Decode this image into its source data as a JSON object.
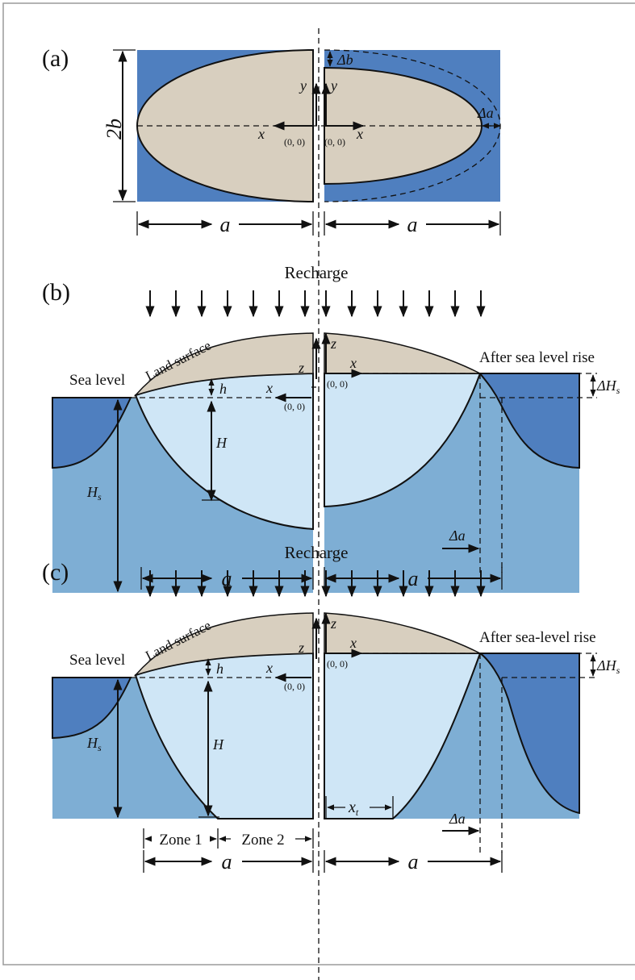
{
  "panel_a": {
    "label": "(a)",
    "height_label": "2b",
    "delta_b": "Δb",
    "y_left": "y",
    "y_right": "y",
    "x_left": "x",
    "x_right": "x",
    "origin_left": "(0, 0)",
    "origin_right": "(0, 0)",
    "delta_a": "Δa",
    "a_left": "a",
    "a_right": "a"
  },
  "panel_b": {
    "label": "(b)",
    "recharge": "Recharge",
    "land_surface": "Land surface",
    "z_left": "z",
    "z_right": "z",
    "x_left": "x",
    "x_right": "x",
    "origin_left": "(0, 0)",
    "origin_right": "(0, 0)",
    "after_rise": "After sea level rise",
    "sea_level": "Sea level",
    "h": "h",
    "H": "H",
    "Hs": {
      "main": "H",
      "sub": "s"
    },
    "delta_Hs": {
      "main": "ΔH",
      "sub": "s"
    },
    "delta_a": "Δa",
    "a_left": "a",
    "a_right": "a"
  },
  "panel_c": {
    "label": "(c)",
    "recharge": "Recharge",
    "land_surface": "Land surface",
    "z_left": "z",
    "z_right": "z",
    "x_left": "x",
    "x_right": "x",
    "origin_left": "(0, 0)",
    "origin_right": "(0, 0)",
    "after_rise": "After sea-level rise",
    "sea_level": "Sea level",
    "h": "h",
    "H": "H",
    "Hs": {
      "main": "H",
      "sub": "s"
    },
    "delta_Hs": {
      "main": "ΔH",
      "sub": "s"
    },
    "xt": {
      "main": "x",
      "sub": "t"
    },
    "delta_a": "Δa",
    "zone_1": "Zone 1",
    "zone_2": "Zone 2",
    "a_left": "a",
    "a_right": "a"
  }
}
